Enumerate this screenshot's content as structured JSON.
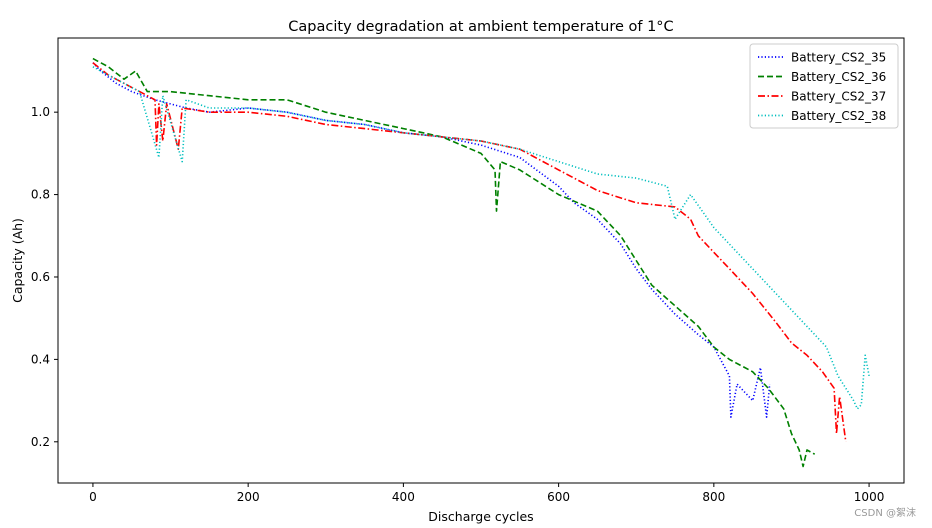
{
  "chart_data": {
    "type": "line",
    "title": "Capacity degradation at ambient temperature of 1°C",
    "xlabel": "Discharge cycles",
    "ylabel": "Capacity (Ah)",
    "xlim": [
      -45,
      1045
    ],
    "ylim": [
      0.1,
      1.18
    ],
    "xticks": [
      0,
      200,
      400,
      600,
      800,
      1000
    ],
    "yticks": [
      0.2,
      0.4,
      0.6,
      0.8,
      1.0
    ],
    "grid": false,
    "legend_position": "top-right",
    "series": [
      {
        "name": "Battery_CS2_35",
        "color": "#0000ff",
        "dash": "dotted",
        "points": [
          [
            0,
            1.12
          ],
          [
            10,
            1.1
          ],
          [
            30,
            1.07
          ],
          [
            50,
            1.05
          ],
          [
            80,
            1.03
          ],
          [
            100,
            1.02
          ],
          [
            120,
            1.01
          ],
          [
            150,
            1.0
          ],
          [
            200,
            1.01
          ],
          [
            250,
            1.0
          ],
          [
            300,
            0.98
          ],
          [
            350,
            0.97
          ],
          [
            400,
            0.95
          ],
          [
            450,
            0.94
          ],
          [
            500,
            0.92
          ],
          [
            550,
            0.89
          ],
          [
            600,
            0.82
          ],
          [
            620,
            0.78
          ],
          [
            650,
            0.74
          ],
          [
            680,
            0.68
          ],
          [
            700,
            0.62
          ],
          [
            720,
            0.57
          ],
          [
            750,
            0.51
          ],
          [
            780,
            0.46
          ],
          [
            800,
            0.43
          ],
          [
            820,
            0.36
          ],
          [
            822,
            0.26
          ],
          [
            830,
            0.34
          ],
          [
            840,
            0.32
          ],
          [
            850,
            0.3
          ],
          [
            860,
            0.38
          ],
          [
            868,
            0.26
          ],
          [
            872,
            0.34
          ]
        ]
      },
      {
        "name": "Battery_CS2_36",
        "color": "#008000",
        "dash": "dashed",
        "points": [
          [
            0,
            1.13
          ],
          [
            20,
            1.11
          ],
          [
            40,
            1.08
          ],
          [
            55,
            1.1
          ],
          [
            70,
            1.05
          ],
          [
            100,
            1.05
          ],
          [
            150,
            1.04
          ],
          [
            200,
            1.03
          ],
          [
            250,
            1.03
          ],
          [
            300,
            1.0
          ],
          [
            350,
            0.98
          ],
          [
            400,
            0.96
          ],
          [
            450,
            0.94
          ],
          [
            500,
            0.9
          ],
          [
            518,
            0.86
          ],
          [
            520,
            0.76
          ],
          [
            525,
            0.88
          ],
          [
            550,
            0.86
          ],
          [
            600,
            0.8
          ],
          [
            650,
            0.76
          ],
          [
            680,
            0.7
          ],
          [
            700,
            0.64
          ],
          [
            720,
            0.58
          ],
          [
            750,
            0.53
          ],
          [
            780,
            0.48
          ],
          [
            800,
            0.43
          ],
          [
            820,
            0.4
          ],
          [
            850,
            0.37
          ],
          [
            870,
            0.33
          ],
          [
            890,
            0.28
          ],
          [
            900,
            0.22
          ],
          [
            910,
            0.18
          ],
          [
            915,
            0.14
          ],
          [
            920,
            0.18
          ],
          [
            930,
            0.17
          ]
        ]
      },
      {
        "name": "Battery_CS2_37",
        "color": "#ff0000",
        "dash": "dashdot",
        "points": [
          [
            0,
            1.12
          ],
          [
            20,
            1.09
          ],
          [
            50,
            1.06
          ],
          [
            80,
            1.03
          ],
          [
            82,
            0.92
          ],
          [
            85,
            1.02
          ],
          [
            90,
            0.93
          ],
          [
            95,
            1.02
          ],
          [
            110,
            0.91
          ],
          [
            115,
            1.01
          ],
          [
            150,
            1.0
          ],
          [
            200,
            1.0
          ],
          [
            250,
            0.99
          ],
          [
            300,
            0.97
          ],
          [
            350,
            0.96
          ],
          [
            400,
            0.95
          ],
          [
            450,
            0.94
          ],
          [
            500,
            0.93
          ],
          [
            550,
            0.91
          ],
          [
            600,
            0.86
          ],
          [
            650,
            0.81
          ],
          [
            700,
            0.78
          ],
          [
            750,
            0.77
          ],
          [
            770,
            0.74
          ],
          [
            780,
            0.7
          ],
          [
            800,
            0.66
          ],
          [
            820,
            0.62
          ],
          [
            850,
            0.56
          ],
          [
            880,
            0.49
          ],
          [
            900,
            0.44
          ],
          [
            920,
            0.41
          ],
          [
            940,
            0.37
          ],
          [
            955,
            0.33
          ],
          [
            958,
            0.22
          ],
          [
            962,
            0.31
          ],
          [
            970,
            0.2
          ]
        ]
      },
      {
        "name": "Battery_CS2_38",
        "color": "#00bfbf",
        "dash": "dotted",
        "points": [
          [
            0,
            1.11
          ],
          [
            30,
            1.08
          ],
          [
            60,
            1.05
          ],
          [
            85,
            0.89
          ],
          [
            90,
            1.04
          ],
          [
            115,
            0.88
          ],
          [
            120,
            1.03
          ],
          [
            150,
            1.01
          ],
          [
            200,
            1.01
          ],
          [
            250,
            1.0
          ],
          [
            300,
            0.98
          ],
          [
            350,
            0.97
          ],
          [
            400,
            0.95
          ],
          [
            450,
            0.94
          ],
          [
            500,
            0.93
          ],
          [
            550,
            0.91
          ],
          [
            600,
            0.88
          ],
          [
            650,
            0.85
          ],
          [
            700,
            0.84
          ],
          [
            740,
            0.82
          ],
          [
            750,
            0.74
          ],
          [
            770,
            0.8
          ],
          [
            800,
            0.72
          ],
          [
            830,
            0.66
          ],
          [
            860,
            0.6
          ],
          [
            890,
            0.54
          ],
          [
            920,
            0.48
          ],
          [
            945,
            0.43
          ],
          [
            960,
            0.36
          ],
          [
            980,
            0.3
          ],
          [
            985,
            0.28
          ],
          [
            990,
            0.29
          ],
          [
            995,
            0.41
          ],
          [
            1000,
            0.36
          ]
        ]
      }
    ]
  },
  "watermark": "CSDN @絮沫"
}
